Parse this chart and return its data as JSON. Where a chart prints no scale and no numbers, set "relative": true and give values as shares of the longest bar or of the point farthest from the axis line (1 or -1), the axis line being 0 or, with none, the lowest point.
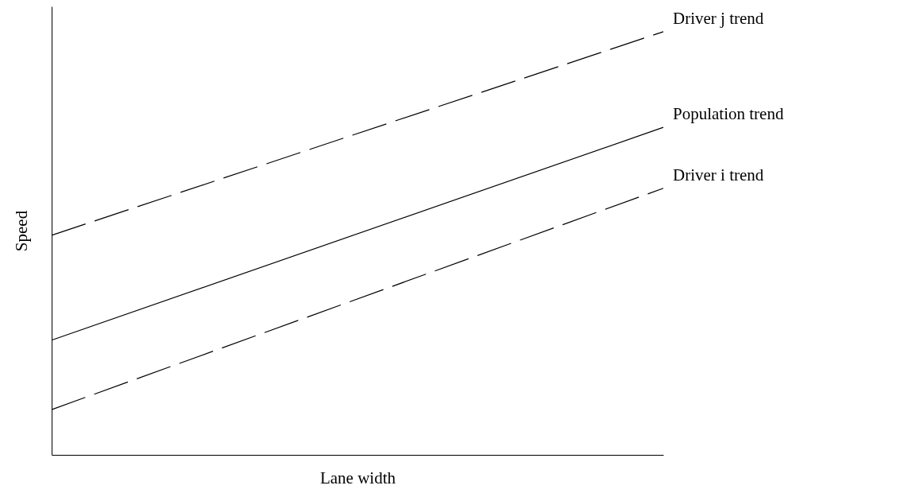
{
  "chart_data": {
    "type": "line",
    "relative": true,
    "xlabel": "Lane width",
    "ylabel": "Speed",
    "categories": [
      null,
      null
    ],
    "series": [
      {
        "name": "Driver j trend",
        "color": "#000000",
        "line_style": "dashed",
        "values": [
          0.519,
          1
        ]
      },
      {
        "name": "Population trend",
        "color": "#000000",
        "line_style": "solid",
        "values": [
          0.271,
          0.774
        ]
      },
      {
        "name": "Driver i trend",
        "color": "#000000",
        "line_style": "dashed",
        "values": [
          0.107,
          0.63
        ]
      }
    ]
  }
}
